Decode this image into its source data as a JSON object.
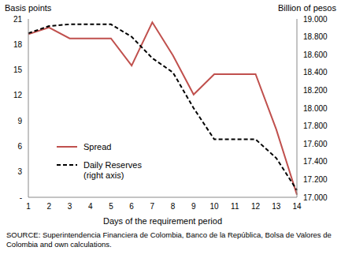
{
  "chart_data": {
    "type": "line",
    "x_label": "Days of the requirement period",
    "y_label": "Basis points",
    "y2_label": "Billion of pesos",
    "source": "SOURCE: Superintendencia Financiera de Colombia, Banco de la República, Bolsa de Valores de Colombia and own calculations.",
    "categories": [
      "1",
      "2",
      "3",
      "4",
      "5",
      "6",
      "7",
      "8",
      "9",
      "10",
      "11",
      "12",
      "13",
      "14"
    ],
    "series": [
      {
        "name": "Spread",
        "color": "#c0504d",
        "line_style": "solid",
        "values": [
          19.2,
          20,
          18.7,
          18.7,
          18.7,
          15.5,
          20.6,
          16.7,
          12.1,
          14.5,
          14.5,
          14.5,
          8,
          0.3
        ]
      },
      {
        "name": "Daily Reserves (right axis)",
        "color": "#000000",
        "line_style": "dashed",
        "axis": "y2",
        "values": [
          18840,
          18920,
          18940,
          18940,
          18940,
          18800,
          18560,
          18400,
          18000,
          17650,
          17650,
          17650,
          17440,
          17080
        ]
      }
    ],
    "ylim": [
      0,
      21
    ],
    "yticks": [
      {
        "value": 0,
        "label": "-"
      },
      3,
      6,
      9,
      12,
      15,
      18,
      21
    ],
    "y2lim": [
      17000,
      19000
    ],
    "y2ticks": [
      {
        "value": 17000,
        "label": "17.000"
      },
      {
        "value": 17200,
        "label": "17.200"
      },
      {
        "value": 17400,
        "label": "17.400"
      },
      {
        "value": 17600,
        "label": "17.600"
      },
      {
        "value": 17800,
        "label": "17.800"
      },
      {
        "value": 18000,
        "label": "18.000"
      },
      {
        "value": 18200,
        "label": "18.200"
      },
      {
        "value": 18400,
        "label": "18.400"
      },
      {
        "value": 18600,
        "label": "18.600"
      },
      {
        "value": 18800,
        "label": "18.800"
      },
      {
        "value": 19000,
        "label": "19.000"
      }
    ],
    "grid": false,
    "legend": "lower left"
  }
}
